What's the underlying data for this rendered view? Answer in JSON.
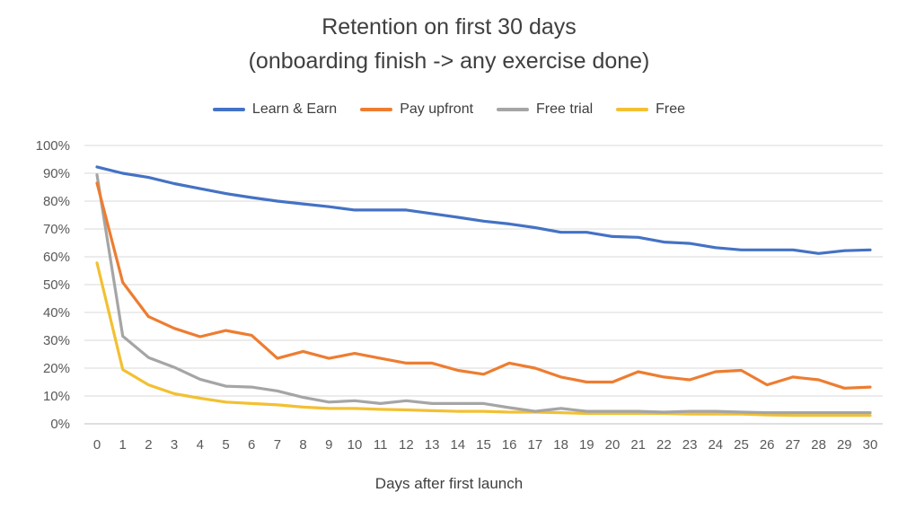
{
  "chart_data": {
    "type": "line",
    "title": "Retention on first 30 days",
    "subtitle": "(onboarding finish -> any exercise done)",
    "xlabel": "Days after first launch",
    "ylabel": "",
    "x": [
      0,
      1,
      2,
      3,
      4,
      5,
      6,
      7,
      8,
      9,
      10,
      11,
      12,
      13,
      14,
      15,
      16,
      17,
      18,
      19,
      20,
      21,
      22,
      23,
      24,
      25,
      26,
      27,
      28,
      29,
      30
    ],
    "ylim": [
      0,
      100
    ],
    "yticks": [
      0,
      10,
      20,
      30,
      40,
      50,
      60,
      70,
      80,
      90,
      100
    ],
    "ytick_labels": [
      "0%",
      "10%",
      "20%",
      "30%",
      "40%",
      "50%",
      "60%",
      "70%",
      "80%",
      "90%",
      "100%"
    ],
    "grid": true,
    "legend_position": "top",
    "series": [
      {
        "name": "Learn & Earn",
        "color": "#4472C4",
        "values": [
          92.3,
          90,
          88.5,
          86.3,
          84.5,
          82.7,
          81.3,
          80,
          79,
          78,
          76.8,
          76.8,
          76.8,
          75.5,
          74.2,
          72.8,
          71.8,
          70.5,
          68.8,
          68.8,
          67.3,
          67,
          65.3,
          64.8,
          63.3,
          62.5,
          62.5,
          62.5,
          61.2,
          62.2,
          62.5
        ]
      },
      {
        "name": "Pay upfront",
        "color": "#ED7D31",
        "values": [
          86.5,
          50.8,
          38.5,
          34.3,
          31.3,
          33.5,
          31.8,
          23.5,
          26,
          23.5,
          25.3,
          23.5,
          21.8,
          21.8,
          19.2,
          17.8,
          21.8,
          20,
          16.8,
          15,
          15,
          18.7,
          16.8,
          15.8,
          18.7,
          19.2,
          14,
          16.8,
          15.8,
          12.8,
          13.2
        ]
      },
      {
        "name": "Free trial",
        "color": "#A5A5A5",
        "values": [
          89.5,
          31.5,
          23.8,
          20.3,
          16,
          13.5,
          13.2,
          11.8,
          9.5,
          7.8,
          8.3,
          7.3,
          8.3,
          7.3,
          7.3,
          7.3,
          5.8,
          4.5,
          5.5,
          4.5,
          4.5,
          4.5,
          4.2,
          4.5,
          4.5,
          4.2,
          4,
          4,
          4,
          4,
          4
        ]
      },
      {
        "name": "Free",
        "color": "#F2C032",
        "values": [
          57.8,
          19.5,
          14,
          10.8,
          9.2,
          7.8,
          7.3,
          6.8,
          6,
          5.5,
          5.5,
          5.2,
          5,
          4.7,
          4.5,
          4.5,
          4.2,
          4.2,
          4,
          3.7,
          3.7,
          3.7,
          3.7,
          3.5,
          3.5,
          3.5,
          3.2,
          3,
          3,
          3,
          3
        ]
      }
    ]
  }
}
